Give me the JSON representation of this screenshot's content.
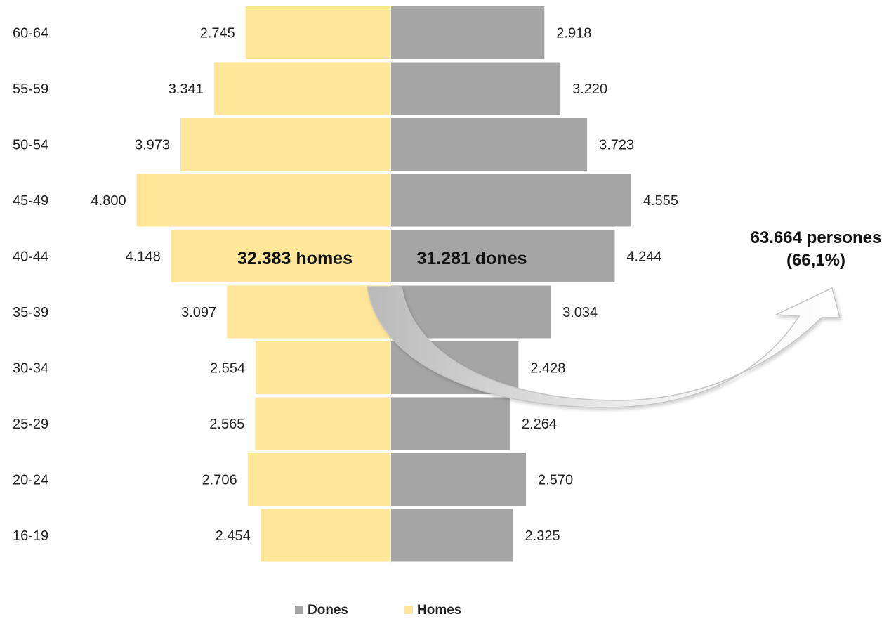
{
  "chart_data": {
    "type": "bar",
    "categories": [
      "60-64",
      "55-59",
      "50-54",
      "45-49",
      "40-44",
      "35-39",
      "30-34",
      "25-29",
      "20-24",
      "16-19"
    ],
    "series": [
      {
        "name": "Homes",
        "values": [
          2745,
          3341,
          3973,
          4800,
          4148,
          3097,
          2554,
          2565,
          2706,
          2454
        ],
        "labels": [
          "2.745",
          "3.341",
          "3.973",
          "4.800",
          "4.148",
          "3.097",
          "2.554",
          "2.565",
          "2.706",
          "2.454"
        ],
        "color": "#FFE699"
      },
      {
        "name": "Dones",
        "values": [
          2918,
          3220,
          3723,
          4555,
          4244,
          3034,
          2428,
          2264,
          2570,
          2325
        ],
        "labels": [
          "2.918",
          "3.220",
          "3.723",
          "4.555",
          "4.244",
          "3.034",
          "2.428",
          "2.264",
          "2.570",
          "2.325"
        ],
        "color": "#A5A5A5"
      }
    ],
    "orientation": "horizontal-pyramid",
    "legend_position": "bottom-center",
    "grid": false
  },
  "annotations": {
    "homes_total": "32.383 homes",
    "dones_total": "31.281 dones",
    "summary_line1": "63.664 persones",
    "summary_line2": "(66,1%)"
  },
  "legend": [
    {
      "label": "Dones",
      "color": "#A5A5A5"
    },
    {
      "label": "Homes",
      "color": "#FFE699"
    }
  ]
}
